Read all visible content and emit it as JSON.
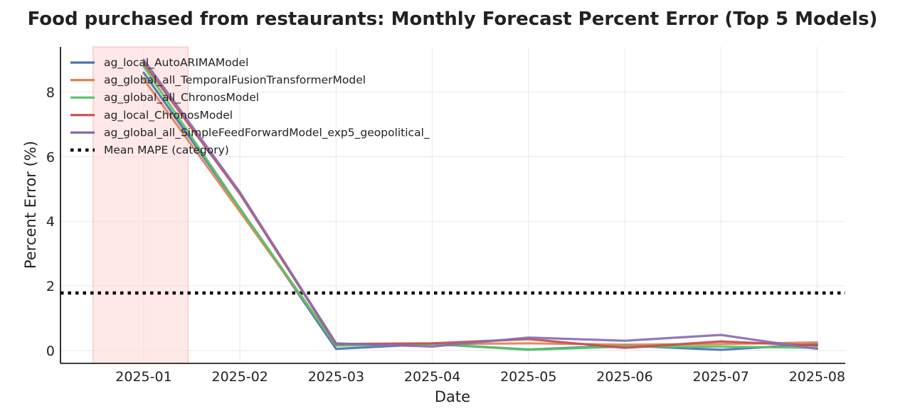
{
  "chart_data": {
    "type": "line",
    "title": "Food purchased from restaurants: Monthly Forecast Percent Error (Top 5 Models)",
    "xlabel": "Date",
    "ylabel": "Percent Error (%)",
    "x": [
      "2025-01",
      "2025-02",
      "2025-03",
      "2025-04",
      "2025-05",
      "2025-06",
      "2025-07",
      "2025-08"
    ],
    "x_ticks": [
      "2025-01",
      "2025-02",
      "2025-03",
      "2025-04",
      "2025-05",
      "2025-06",
      "2025-07",
      "2025-08"
    ],
    "y_ticks": [
      0,
      2,
      4,
      6,
      8
    ],
    "ylim": [
      -0.4,
      9.4
    ],
    "grid": true,
    "legend_position": "upper-left",
    "highlight_span": {
      "start": "2024-12-16",
      "end": "2025-01-15",
      "color": "#ffd6d6"
    },
    "series": [
      {
        "name": "ag_local_AutoARIMAModel",
        "color": "#4c72b0",
        "values": [
          8.6,
          4.4,
          0.05,
          0.2,
          0.03,
          0.15,
          0.02,
          0.2
        ]
      },
      {
        "name": "ag_global_all_TemporalFusionTransformerModel",
        "color": "#dd8452",
        "values": [
          8.4,
          4.3,
          0.18,
          0.2,
          0.22,
          0.18,
          0.2,
          0.25
        ]
      },
      {
        "name": "ag_global_all_ChronosModel",
        "color": "#55c667",
        "values": [
          8.8,
          4.4,
          0.15,
          0.2,
          0.02,
          0.12,
          0.12,
          0.08
        ]
      },
      {
        "name": "ag_local_ChronosModel",
        "color": "#c44e52",
        "values": [
          8.9,
          4.85,
          0.2,
          0.22,
          0.35,
          0.08,
          0.28,
          0.15
        ]
      },
      {
        "name": "ag_global_all_SimpleFeedForwardModel_exp5_geopolitical_",
        "color": "#8c6bb1",
        "values": [
          9.0,
          4.9,
          0.22,
          0.12,
          0.4,
          0.3,
          0.48,
          0.05
        ]
      }
    ],
    "reference_line": {
      "name": "Mean MAPE (category)",
      "value": 1.78,
      "color": "#000000",
      "style": "dotted"
    }
  }
}
